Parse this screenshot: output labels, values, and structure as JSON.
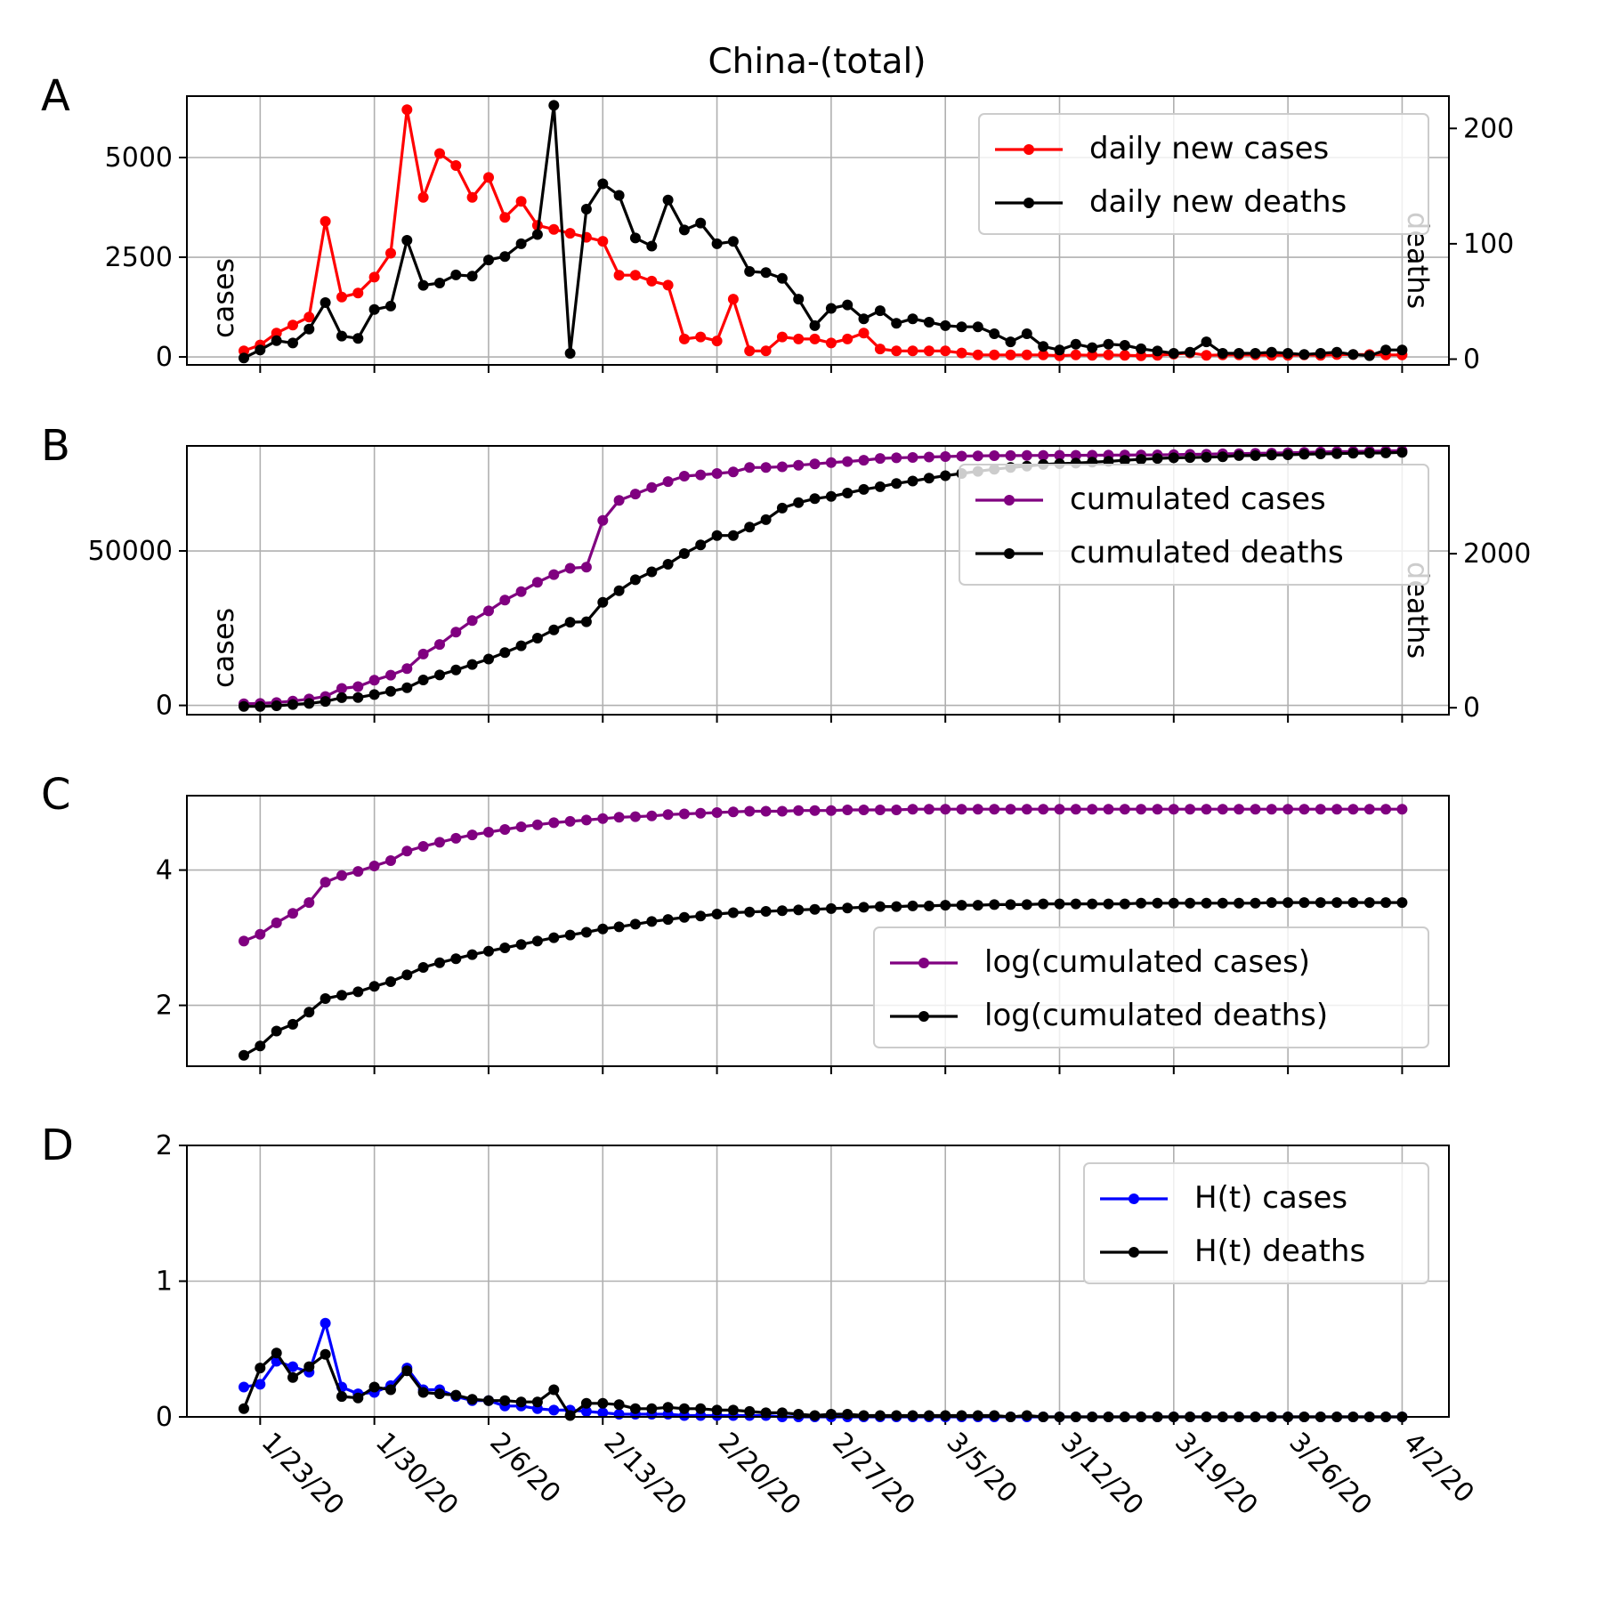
{
  "title": "China-(total)",
  "x_tick_labels": [
    "1/23/20",
    "1/30/20",
    "2/6/20",
    "2/13/20",
    "2/20/20",
    "2/27/20",
    "3/5/20",
    "3/12/20",
    "3/19/20",
    "3/26/20",
    "4/2/20"
  ],
  "chart_data": [
    {
      "panel": "A",
      "type": "line",
      "x": {
        "start": "1/22/20",
        "count": 72,
        "step_days": 1
      },
      "y_left_label": "cases",
      "y_right_label": "deaths",
      "ylim_left": [
        -200,
        6540
      ],
      "ylim_right": [
        -5,
        228
      ],
      "left_ticks": [
        0,
        2500,
        5000
      ],
      "right_ticks": [
        0,
        100,
        200
      ],
      "grid": true,
      "legend_position": "top-right",
      "colors": {
        "left": "#ff0000",
        "right": "#000000"
      },
      "series_left": {
        "name": "daily new cases",
        "values": [
          150,
          300,
          600,
          800,
          1000,
          3400,
          1500,
          1600,
          2000,
          2600,
          6200,
          4000,
          5100,
          4800,
          4000,
          4500,
          3500,
          3900,
          3300,
          3200,
          3100,
          3000,
          2900,
          2050,
          2050,
          1900,
          1800,
          450,
          500,
          400,
          1450,
          150,
          150,
          500,
          450,
          450,
          350,
          450,
          600,
          200,
          150,
          150,
          150,
          150,
          100,
          50,
          50,
          50,
          50,
          50,
          30,
          50,
          40,
          50,
          40,
          30,
          40,
          70,
          100,
          40,
          50,
          50,
          50,
          40,
          40,
          50,
          40,
          60,
          60,
          60,
          50,
          50
        ]
      },
      "series_right": {
        "name": "daily new deaths",
        "values": [
          1,
          8,
          16,
          14,
          26,
          49,
          20,
          18,
          43,
          46,
          103,
          64,
          66,
          73,
          72,
          86,
          89,
          100,
          108,
          220,
          5,
          130,
          152,
          142,
          105,
          98,
          138,
          112,
          118,
          100,
          102,
          76,
          75,
          70,
          52,
          29,
          44,
          47,
          35,
          42,
          31,
          35,
          32,
          29,
          28,
          28,
          22,
          15,
          22,
          11,
          8,
          13,
          10,
          13,
          12,
          9,
          7,
          5,
          6,
          15,
          5,
          5,
          5,
          6,
          5,
          4,
          5,
          6,
          4,
          3,
          8,
          8
        ]
      }
    },
    {
      "panel": "B",
      "type": "line",
      "x": {
        "start": "1/22/20",
        "count": 72,
        "step_days": 1
      },
      "y_left_label": "cases",
      "y_right_label": "deaths",
      "ylim_left": [
        -3000,
        84000
      ],
      "ylim_right": [
        -90,
        3400
      ],
      "left_ticks": [
        0,
        50000
      ],
      "right_ticks": [
        0,
        2000
      ],
      "grid": true,
      "legend_position": "top-right",
      "colors": {
        "left": "#800080",
        "right": "#000000"
      },
      "series_left": {
        "name": "cumulated cases",
        "values": [
          548,
          643,
          920,
          1406,
          2075,
          2877,
          5509,
          6087,
          8141,
          9802,
          11891,
          16630,
          19716,
          23707,
          27440,
          30587,
          34110,
          36814,
          39829,
          42354,
          44386,
          44759,
          59895,
          66358,
          68413,
          70513,
          72434,
          74211,
          74619,
          75077,
          75550,
          77001,
          77022,
          77241,
          77754,
          78166,
          78600,
          78928,
          79356,
          79932,
          80136,
          80261,
          80386,
          80537,
          80690,
          80770,
          80823,
          80860,
          80887,
          80921,
          80932,
          80945,
          80977,
          81003,
          81033,
          81058,
          81102,
          81156,
          81250,
          81305,
          81435,
          81498,
          81591,
          81661,
          81782,
          81897,
          81999,
          82122,
          82198,
          82279,
          82361,
          82432
        ]
      },
      "series_right": {
        "name": "cumulated deaths",
        "values": [
          17,
          18,
          26,
          42,
          56,
          82,
          131,
          133,
          171,
          213,
          259,
          361,
          425,
          490,
          562,
          632,
          717,
          804,
          904,
          1011,
          1111,
          1116,
          1368,
          1520,
          1662,
          1765,
          1863,
          2002,
          2114,
          2236,
          2236,
          2345,
          2442,
          2592,
          2663,
          2715,
          2744,
          2788,
          2835,
          2870,
          2912,
          2943,
          2981,
          3013,
          3042,
          3070,
          3097,
          3119,
          3136,
          3158,
          3169,
          3176,
          3189,
          3199,
          3213,
          3226,
          3237,
          3245,
          3249,
          3253,
          3259,
          3274,
          3274,
          3281,
          3285,
          3291,
          3296,
          3299,
          3304,
          3308,
          3309,
          3316
        ]
      }
    },
    {
      "panel": "C",
      "type": "line",
      "x": {
        "start": "1/22/20",
        "count": 72,
        "step_days": 1
      },
      "ylim": [
        1.1,
        5.1
      ],
      "y_ticks": [
        2,
        4
      ],
      "grid": true,
      "legend_position": "lower-right",
      "colors": {
        "cases": "#800080",
        "deaths": "#000000"
      },
      "series": [
        {
          "name": "log(cumulated cases)",
          "values": [
            2.95,
            3.05,
            3.22,
            3.36,
            3.52,
            3.82,
            3.92,
            3.98,
            4.06,
            4.14,
            4.28,
            4.35,
            4.41,
            4.47,
            4.52,
            4.56,
            4.6,
            4.64,
            4.67,
            4.7,
            4.72,
            4.74,
            4.76,
            4.78,
            4.79,
            4.8,
            4.82,
            4.83,
            4.84,
            4.85,
            4.86,
            4.87,
            4.87,
            4.87,
            4.88,
            4.88,
            4.88,
            4.89,
            4.89,
            4.89,
            4.89,
            4.9,
            4.9,
            4.9,
            4.9,
            4.9,
            4.9,
            4.9,
            4.9,
            4.9,
            4.9,
            4.9,
            4.9,
            4.9,
            4.9,
            4.9,
            4.9,
            4.9,
            4.9,
            4.9,
            4.9,
            4.9,
            4.9,
            4.9,
            4.9,
            4.9,
            4.9,
            4.9,
            4.9,
            4.9,
            4.9,
            4.9
          ]
        },
        {
          "name": "log(cumulated deaths)",
          "values": [
            1.26,
            1.4,
            1.62,
            1.72,
            1.9,
            2.1,
            2.15,
            2.2,
            2.28,
            2.35,
            2.45,
            2.56,
            2.63,
            2.69,
            2.75,
            2.8,
            2.85,
            2.9,
            2.95,
            3.0,
            3.04,
            3.08,
            3.13,
            3.16,
            3.2,
            3.24,
            3.27,
            3.3,
            3.32,
            3.35,
            3.37,
            3.38,
            3.39,
            3.4,
            3.41,
            3.42,
            3.43,
            3.44,
            3.45,
            3.46,
            3.46,
            3.47,
            3.47,
            3.48,
            3.48,
            3.48,
            3.49,
            3.49,
            3.49,
            3.5,
            3.5,
            3.5,
            3.5,
            3.5,
            3.5,
            3.51,
            3.51,
            3.51,
            3.51,
            3.51,
            3.51,
            3.51,
            3.51,
            3.52,
            3.52,
            3.52,
            3.52,
            3.52,
            3.52,
            3.52,
            3.52,
            3.52
          ]
        }
      ]
    },
    {
      "panel": "D",
      "type": "line",
      "x": {
        "start": "1/22/20",
        "count": 72,
        "step_days": 1
      },
      "ylim": [
        0,
        2
      ],
      "y_ticks": [
        0,
        1,
        2
      ],
      "grid": true,
      "legend_position": "top-right",
      "colors": {
        "cases": "#0000ff",
        "deaths": "#000000"
      },
      "series": [
        {
          "name": "H(t) cases",
          "values": [
            0.22,
            0.24,
            0.41,
            0.37,
            0.33,
            0.69,
            0.22,
            0.17,
            0.18,
            0.23,
            0.36,
            0.2,
            0.2,
            0.15,
            0.12,
            0.12,
            0.08,
            0.08,
            0.06,
            0.05,
            0.05,
            0.04,
            0.03,
            0.02,
            0.02,
            0.02,
            0.02,
            0.01,
            0.01,
            0.01,
            0.01,
            0.01,
            0.01,
            0,
            0,
            0,
            0,
            0,
            0,
            0,
            0,
            0,
            0,
            0,
            0,
            0,
            0,
            0,
            0,
            0,
            0,
            0,
            0,
            0,
            0,
            0,
            0,
            0,
            0,
            0,
            0,
            0,
            0,
            0,
            0,
            0,
            0,
            0,
            0,
            0,
            0,
            0
          ]
        },
        {
          "name": "H(t) deaths",
          "values": [
            0.06,
            0.36,
            0.47,
            0.29,
            0.37,
            0.46,
            0.15,
            0.14,
            0.22,
            0.2,
            0.34,
            0.18,
            0.17,
            0.16,
            0.13,
            0.12,
            0.12,
            0.11,
            0.11,
            0.2,
            0.01,
            0.1,
            0.1,
            0.09,
            0.06,
            0.06,
            0.07,
            0.06,
            0.06,
            0.05,
            0.05,
            0.04,
            0.03,
            0.03,
            0.02,
            0.01,
            0.02,
            0.02,
            0.01,
            0.01,
            0.01,
            0.01,
            0.01,
            0.01,
            0.01,
            0.01,
            0.01,
            0,
            0.01,
            0,
            0,
            0,
            0,
            0,
            0,
            0,
            0,
            0,
            0,
            0,
            0,
            0,
            0,
            0,
            0,
            0,
            0,
            0,
            0,
            0,
            0,
            0
          ]
        }
      ]
    }
  ]
}
